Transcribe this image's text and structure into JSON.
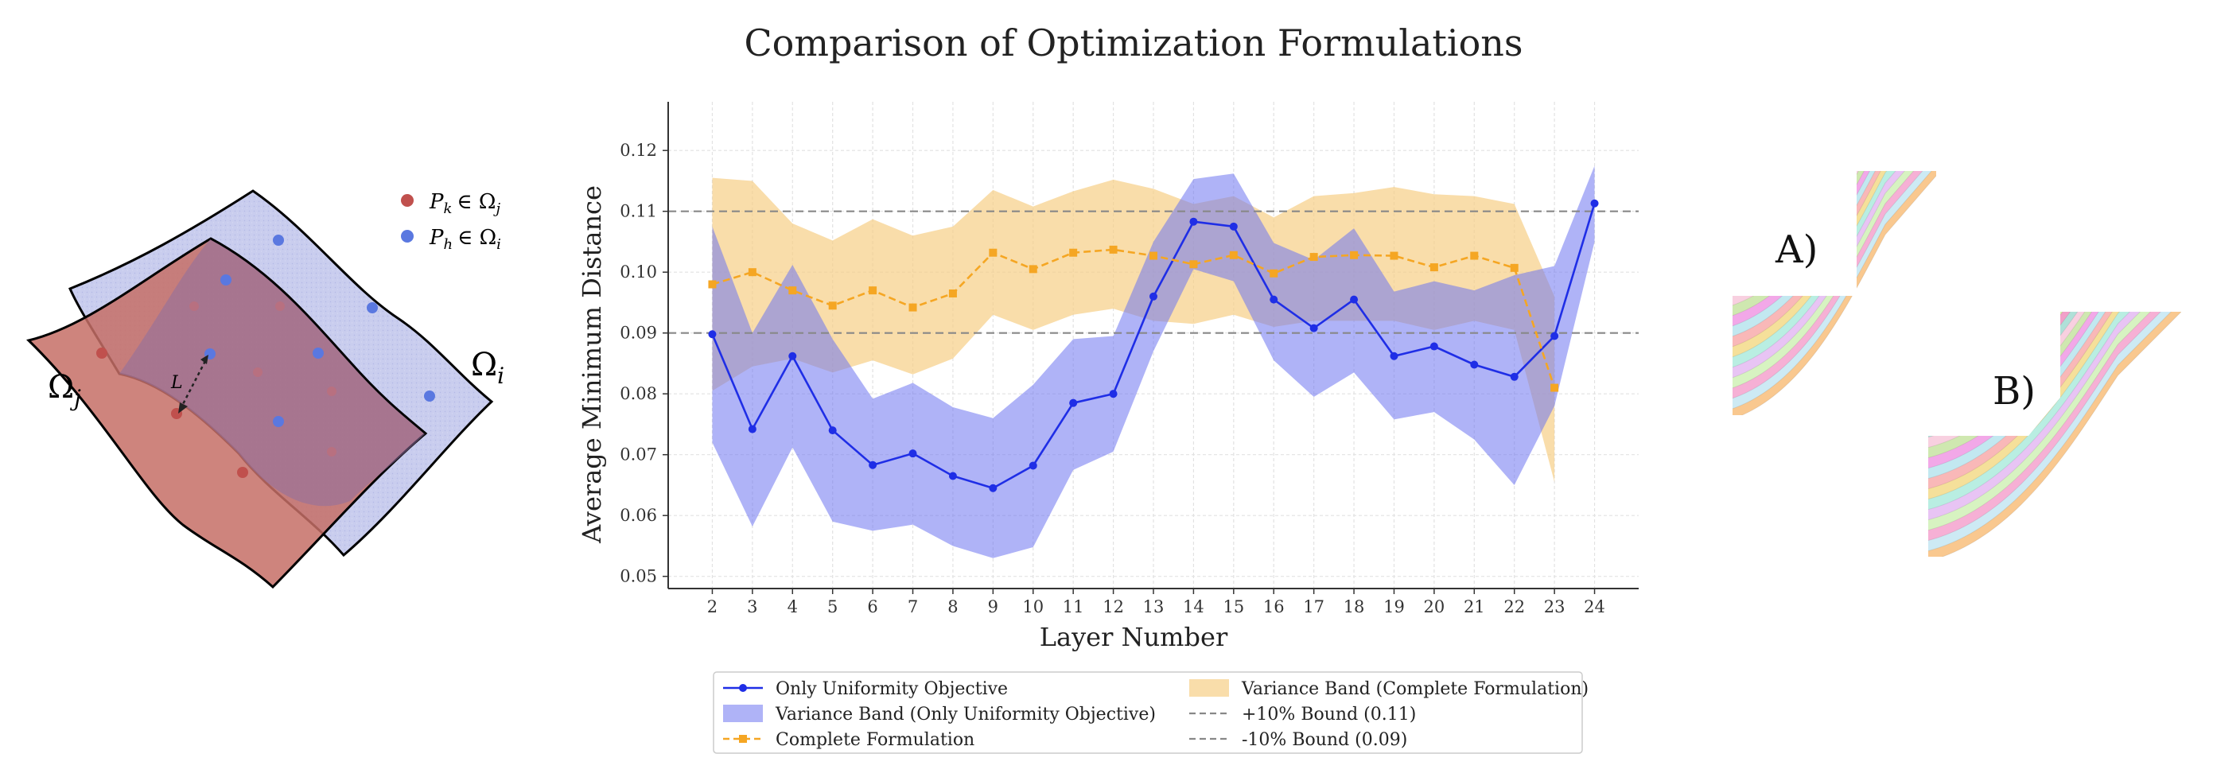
{
  "left_figure": {
    "omega_i": "Ω",
    "omega_i_sub": "i",
    "omega_j": "Ω",
    "omega_j_sub": "j",
    "distance_label": "L",
    "legend_red": "P",
    "legend_red_sub": "k",
    "legend_red_rest": "∈ Ω",
    "legend_red_rest_sub": "j",
    "legend_blue": "P",
    "legend_blue_sub": "h",
    "legend_blue_rest": "∈ Ω",
    "legend_blue_rest_sub": "i",
    "red_color": "#c0504d",
    "blue_color": "#5a78e0"
  },
  "chart_data": {
    "type": "line",
    "title": "Comparison of Optimization Formulations",
    "xlabel": "Layer Number",
    "ylabel": "Average Minimum Distance",
    "ylim": [
      0.048,
      0.128
    ],
    "yticks": [
      0.05,
      0.06,
      0.07,
      0.08,
      0.09,
      0.1,
      0.11,
      0.12
    ],
    "ytick_labels": [
      "0.05",
      "0.06",
      "0.07",
      "0.08",
      "0.09",
      "0.10",
      "0.11",
      "0.12"
    ],
    "x": [
      2,
      3,
      4,
      5,
      6,
      7,
      8,
      9,
      10,
      11,
      12,
      13,
      14,
      15,
      16,
      17,
      18,
      19,
      20,
      21,
      22,
      23,
      24
    ],
    "xtick_labels": [
      "2",
      "3",
      "4",
      "5",
      "6",
      "7",
      "8",
      "9",
      "10",
      "11",
      "12",
      "13",
      "14",
      "15",
      "16",
      "17",
      "18",
      "19",
      "20",
      "21",
      "22",
      "23",
      "24"
    ],
    "grid": true,
    "legend_position": "bottom",
    "series": [
      {
        "name": "Only Uniformity Objective",
        "color": "#1f2ee6",
        "marker": "circle",
        "values": [
          0.0898,
          0.0742,
          0.0862,
          0.074,
          0.0683,
          0.0702,
          0.0665,
          0.0645,
          0.0682,
          0.0785,
          0.08,
          0.096,
          0.1083,
          0.1075,
          0.0955,
          0.0908,
          0.0955,
          0.0862,
          0.0878,
          0.0848,
          0.0828,
          0.0895,
          0.1113
        ]
      },
      {
        "name": "Complete Formulation",
        "color": "#f5a623",
        "marker": "square",
        "values": [
          0.098,
          0.1,
          0.097,
          0.0945,
          0.097,
          0.0942,
          0.0965,
          0.1032,
          0.1005,
          0.1032,
          0.1037,
          0.1027,
          0.1013,
          0.1028,
          0.0998,
          0.1025,
          0.1028,
          0.1027,
          0.1008,
          0.1027,
          0.1007,
          0.081,
          null
        ]
      }
    ],
    "bands": [
      {
        "name": "Variance Band (Only Uniformity Objective)",
        "color": "#6e74f0",
        "lower": [
          0.072,
          0.0582,
          0.0712,
          0.059,
          0.0575,
          0.0585,
          0.055,
          0.053,
          0.0548,
          0.0675,
          0.0705,
          0.087,
          0.1005,
          0.0985,
          0.0855,
          0.0795,
          0.0835,
          0.0758,
          0.077,
          0.0725,
          0.065,
          0.078,
          0.105
        ],
        "upper": [
          0.1075,
          0.09,
          0.1012,
          0.089,
          0.0792,
          0.0818,
          0.0778,
          0.076,
          0.0815,
          0.089,
          0.0895,
          0.105,
          0.1153,
          0.1162,
          0.1048,
          0.102,
          0.1072,
          0.0968,
          0.0985,
          0.097,
          0.0995,
          0.101,
          0.1175
        ]
      },
      {
        "name": "Variance Band (Complete Formulation)",
        "color": "#f7cf86",
        "lower": [
          0.0805,
          0.0845,
          0.0858,
          0.0835,
          0.0855,
          0.0832,
          0.0858,
          0.093,
          0.0905,
          0.093,
          0.094,
          0.092,
          0.0915,
          0.093,
          0.091,
          0.092,
          0.092,
          0.092,
          0.0905,
          0.092,
          0.0905,
          0.0655,
          null
        ],
        "upper": [
          0.1155,
          0.115,
          0.108,
          0.1052,
          0.1087,
          0.106,
          0.1075,
          0.1135,
          0.1108,
          0.1133,
          0.1152,
          0.1137,
          0.1112,
          0.1125,
          0.109,
          0.1125,
          0.113,
          0.114,
          0.1128,
          0.1125,
          0.1112,
          0.096,
          null
        ]
      }
    ],
    "hlines": [
      {
        "name": "+10% Bound (0.11)",
        "value": 0.11,
        "color": "#888888",
        "style": "dashed"
      },
      {
        "name": "-10% Bound (0.09)",
        "value": 0.09,
        "color": "#888888",
        "style": "dashed"
      }
    ],
    "legend_entries": [
      "Only Uniformity Objective",
      "Variance Band (Only Uniformity Objective)",
      "Complete Formulation",
      "Variance Band (Complete Formulation)",
      "+10% Bound (0.11)",
      "-10% Bound (0.09)"
    ]
  },
  "right_figure": {
    "label_a": "A)",
    "label_b": "B)",
    "stripe_colors": [
      "#f9c88f",
      "#cdeaf4",
      "#f6b0d5",
      "#d7f3c1",
      "#e8c4f4",
      "#b9eee2",
      "#f5e09a",
      "#f9b8b8",
      "#c2e8f0",
      "#f2a8e8",
      "#cfe8b0",
      "#f8d0e0",
      "#b0e0d8",
      "#f2a0c8",
      "#d8f4a8"
    ]
  }
}
